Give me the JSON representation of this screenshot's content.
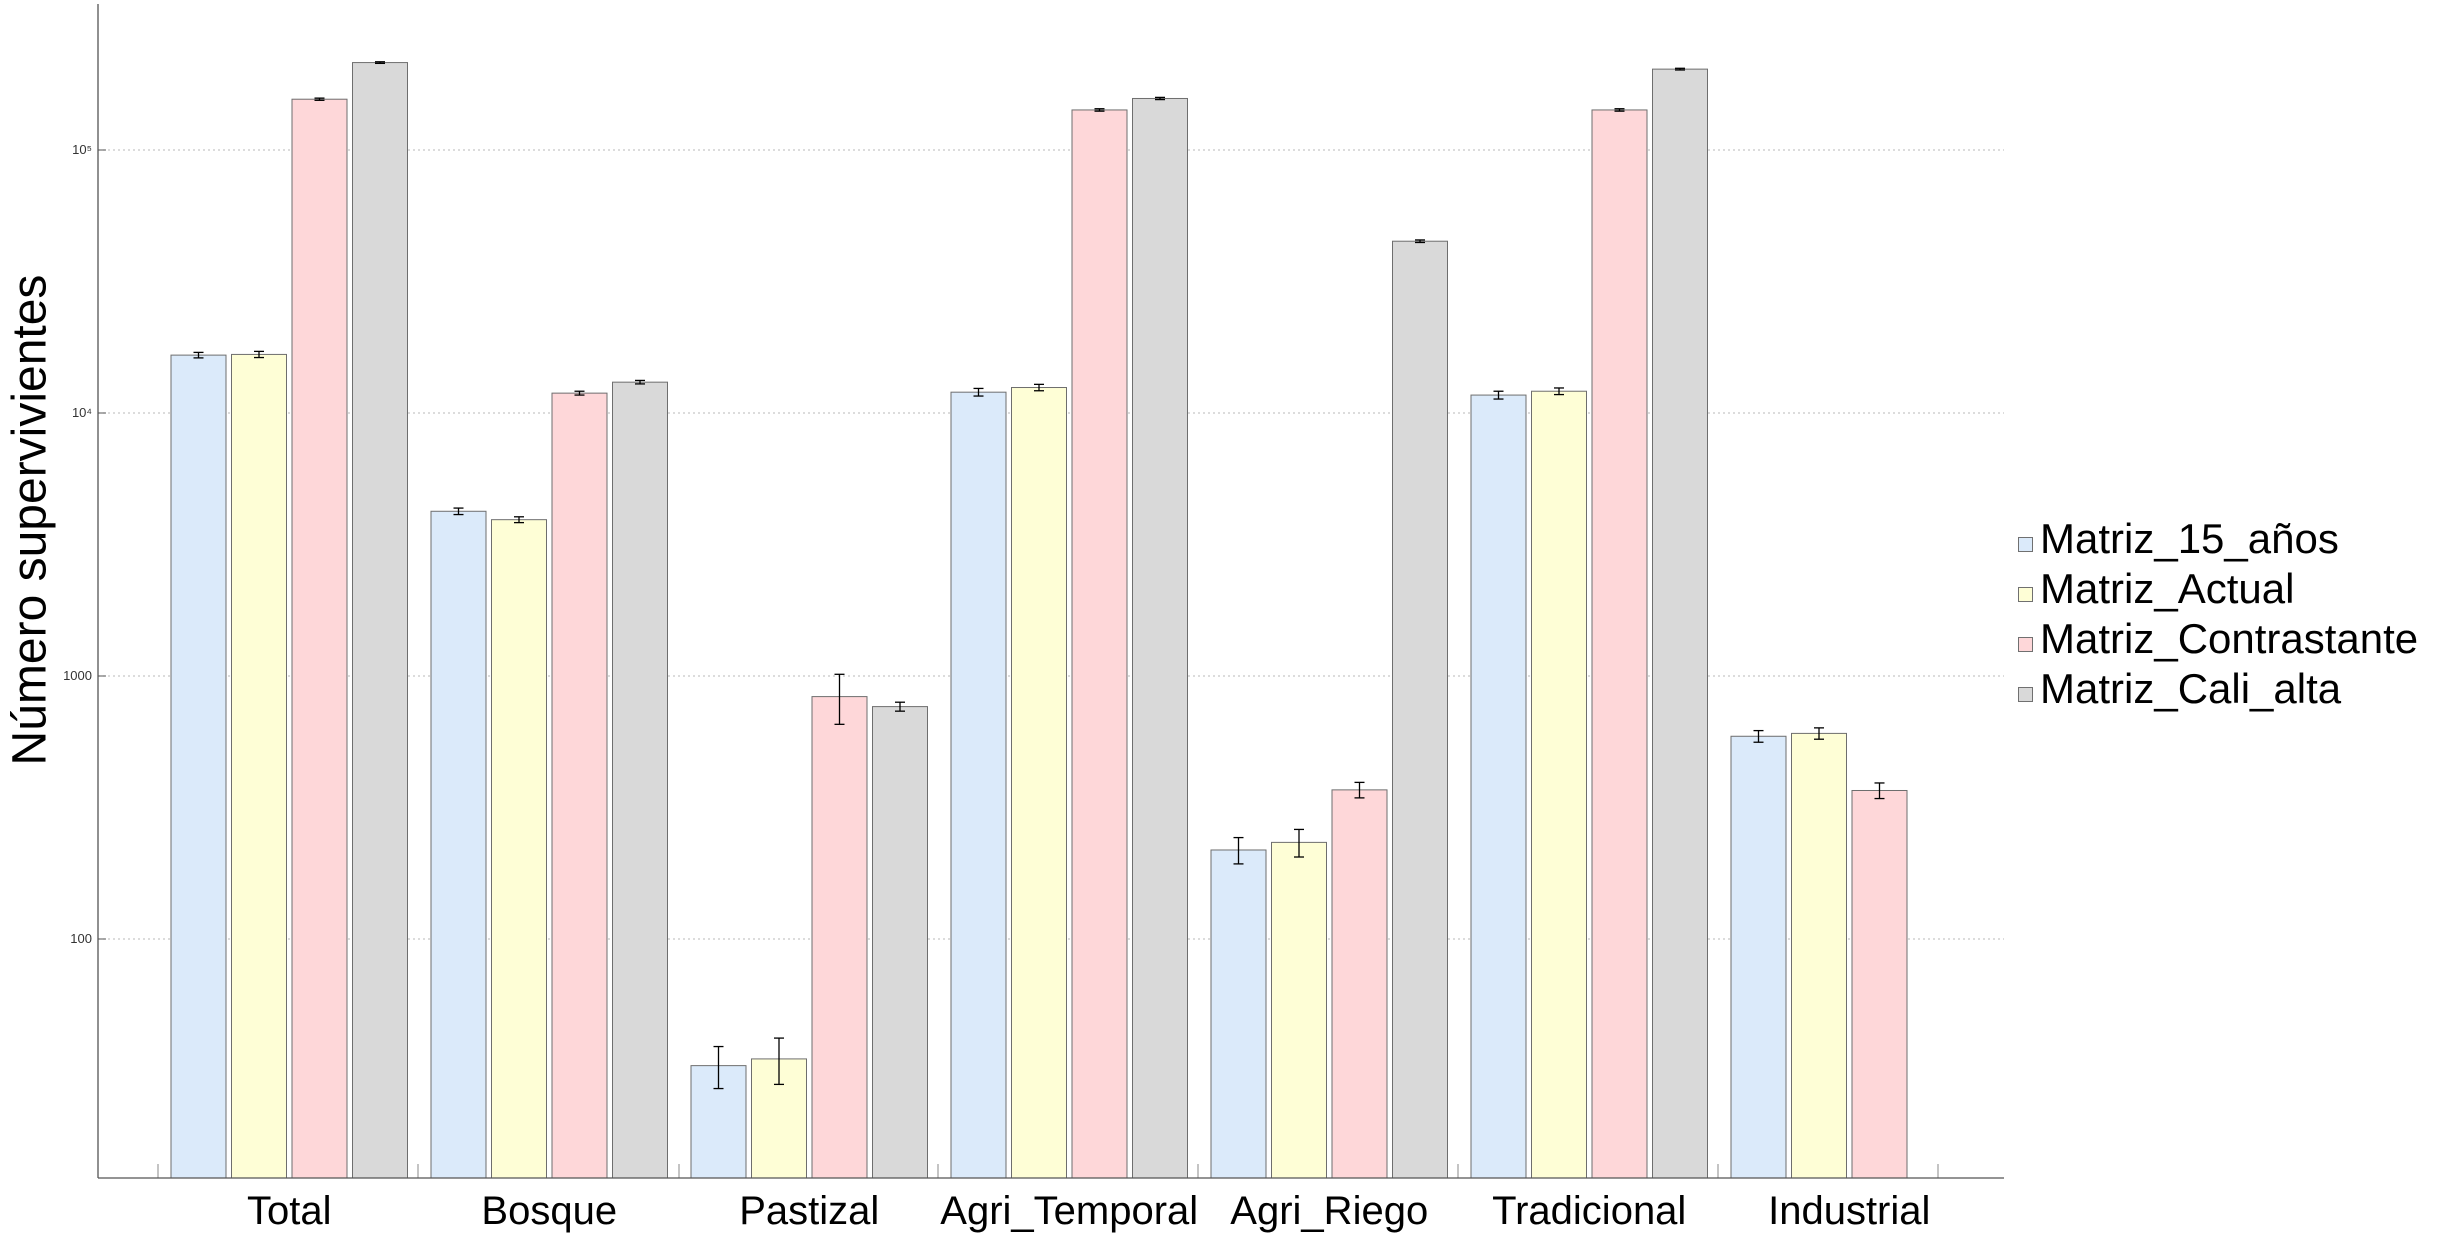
{
  "chart_data": {
    "type": "bar",
    "title": "",
    "xlabel": "",
    "ylabel": "Número supervivientes",
    "yscale": "log",
    "ylim": [
      15,
      350000
    ],
    "yticks": [
      100,
      1000,
      10000,
      100000
    ],
    "ytick_labels": [
      "100",
      "1000",
      "10⁴",
      "10⁵"
    ],
    "grid": "horizontal",
    "legend_position": "right",
    "categories": [
      "Total",
      "Bosque",
      "Pastizal",
      "Agri_Temporal",
      "Agri_Riego",
      "Tradicional",
      "Industrial"
    ],
    "series": [
      {
        "name": "Matriz_15_años",
        "color": "#dbeafa",
        "values": [
          16600,
          4230,
          33,
          12000,
          218,
          11700,
          590
        ],
        "errors": [
          400,
          120,
          6,
          400,
          25,
          400,
          30
        ]
      },
      {
        "name": "Matriz_Actual",
        "color": "#fefed6",
        "values": [
          16700,
          3930,
          35,
          12500,
          233,
          12100,
          605
        ],
        "errors": [
          450,
          100,
          7,
          350,
          28,
          350,
          30
        ]
      },
      {
        "name": "Matriz_Contrastante",
        "color": "#fed7d9",
        "values": [
          156000,
          11900,
          835,
          142000,
          369,
          142000,
          367
        ],
        "errors": [
          1500,
          200,
          180,
          1500,
          25,
          1500,
          25
        ]
      },
      {
        "name": "Matriz_Cali_alta",
        "color": "#d9d9d9",
        "values": [
          215000,
          13100,
          765,
          157000,
          45000,
          203000,
          null
        ],
        "errors": [
          1500,
          200,
          30,
          1500,
          500,
          1500,
          null
        ]
      }
    ]
  }
}
